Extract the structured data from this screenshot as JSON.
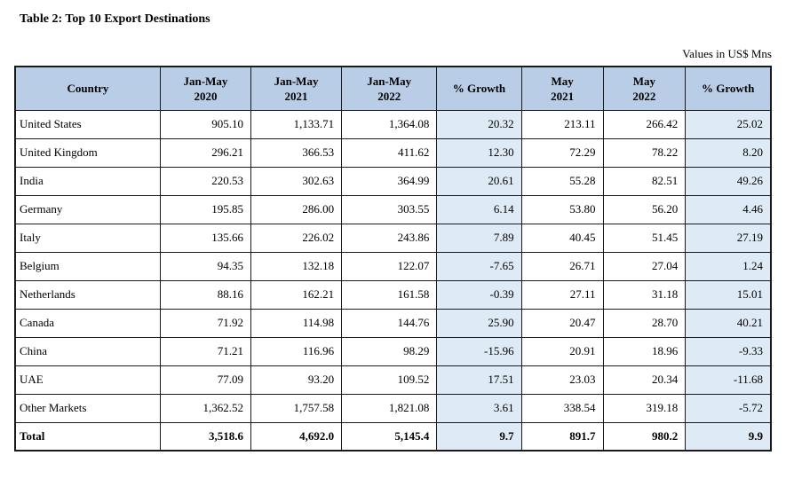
{
  "page": {
    "title": "Table 2: Top 10 Export Destinations",
    "units_note": "Values in US$ Mns"
  },
  "table": {
    "colors": {
      "header_bg": "#b9cde6",
      "growth_bg": "#deeaf6",
      "border": "#1a1a1a"
    },
    "columns": [
      "Country",
      "Jan-May\n2020",
      "Jan-May\n2021",
      "Jan-May\n2022",
      "% Growth",
      "May\n2021",
      "May\n2022",
      "% Growth"
    ],
    "rows": [
      {
        "country": "United States",
        "values": [
          "905.10",
          "1,133.71",
          "1,364.08",
          "20.32",
          "213.11",
          "266.42",
          "25.02"
        ]
      },
      {
        "country": "United Kingdom",
        "values": [
          "296.21",
          "366.53",
          "411.62",
          "12.30",
          "72.29",
          "78.22",
          "8.20"
        ]
      },
      {
        "country": "India",
        "values": [
          "220.53",
          "302.63",
          "364.99",
          "20.61",
          "55.28",
          "82.51",
          "49.26"
        ]
      },
      {
        "country": "Germany",
        "values": [
          "195.85",
          "286.00",
          "303.55",
          "6.14",
          "53.80",
          "56.20",
          "4.46"
        ]
      },
      {
        "country": "Italy",
        "values": [
          "135.66",
          "226.02",
          "243.86",
          "7.89",
          "40.45",
          "51.45",
          "27.19"
        ]
      },
      {
        "country": "Belgium",
        "values": [
          "94.35",
          "132.18",
          "122.07",
          "-7.65",
          "26.71",
          "27.04",
          "1.24"
        ]
      },
      {
        "country": "Netherlands",
        "values": [
          "88.16",
          "162.21",
          "161.58",
          "-0.39",
          "27.11",
          "31.18",
          "15.01"
        ]
      },
      {
        "country": "Canada",
        "values": [
          "71.92",
          "114.98",
          "144.76",
          "25.90",
          "20.47",
          "28.70",
          "40.21"
        ]
      },
      {
        "country": "China",
        "values": [
          "71.21",
          "116.96",
          "98.29",
          "-15.96",
          "20.91",
          "18.96",
          "-9.33"
        ]
      },
      {
        "country": "UAE",
        "values": [
          "77.09",
          "93.20",
          "109.52",
          "17.51",
          "23.03",
          "20.34",
          "-11.68"
        ]
      },
      {
        "country": "Other Markets",
        "values": [
          "1,362.52",
          "1,757.58",
          "1,821.08",
          "3.61",
          "338.54",
          "319.18",
          "-5.72"
        ]
      },
      {
        "country": "Total",
        "total": true,
        "values": [
          "3,518.6",
          "4,692.0",
          "5,145.4",
          "9.7",
          "891.7",
          "980.2",
          "9.9"
        ]
      }
    ]
  }
}
